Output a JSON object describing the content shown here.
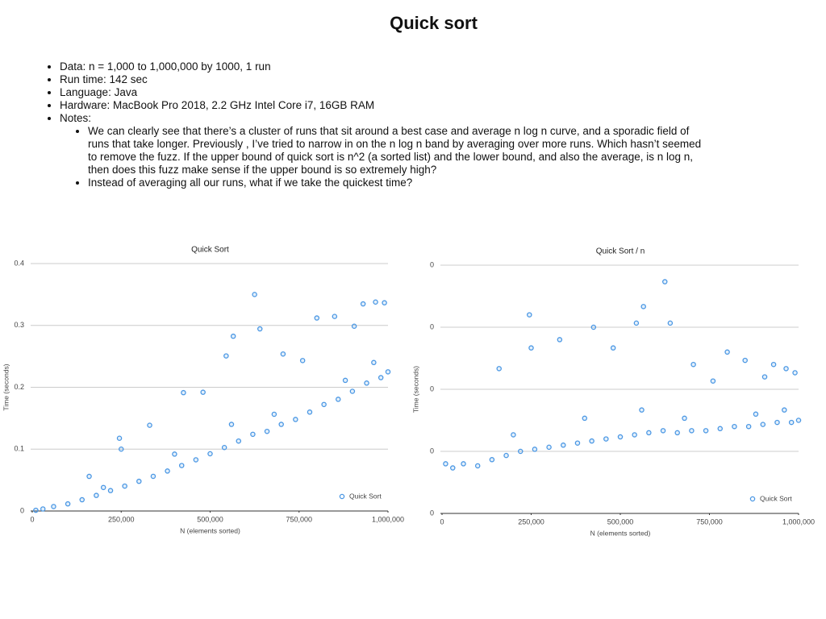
{
  "slide_title": "Quick sort",
  "bullets": [
    "Data: n = 1,000 to 1,000,000 by 1000, 1 run",
    "Run time: 142 sec",
    "Language: Java",
    "Hardware: MacBook Pro 2018, 2.2 GHz Intel Core i7, 16GB RAM",
    "Notes:"
  ],
  "notes": [
    "We can clearly see that there’s a cluster of runs that sit around a best case and average n log n curve, and a sporadic field of runs that take longer. Previously , I’ve tried to narrow in on the n log n band by averaging over more runs. Which hasn’t seemed to remove the fuzz. If the upper bound of quick sort is n^2 (a sorted list) and the lower bound, and also the average, is n log n, then does this fuzz make sense if the upper bound is so extremely high?",
    "Instead of averaging all our runs, what if we take the quickest time?"
  ],
  "chart_data": [
    {
      "type": "scatter",
      "title": "Quick Sort",
      "x_label": "N (elements sorted)",
      "y_label": "Time (seconds)",
      "xlim": [
        0,
        1000000
      ],
      "xticks": [
        0,
        {
          "value": 250000,
          "label": "250,000"
        },
        {
          "value": 500000,
          "label": "500,000"
        },
        {
          "value": 750000,
          "label": "750,000"
        },
        {
          "value": 1000000,
          "label": "1,000,000"
        }
      ],
      "ylim": [
        0,
        0.4
      ],
      "yticks": [
        0,
        0.1,
        0.2,
        0.3,
        0.4
      ],
      "grid": true,
      "legend": "bottom-right",
      "x": [
        10000,
        30000,
        60000,
        100000,
        140000,
        160000,
        180000,
        200000,
        220000,
        245000,
        250000,
        260000,
        300000,
        330000,
        340000,
        380000,
        400000,
        420000,
        425000,
        460000,
        480000,
        500000,
        540000,
        545000,
        560000,
        565000,
        580000,
        620000,
        625000,
        640000,
        660000,
        680000,
        700000,
        705000,
        740000,
        760000,
        780000,
        800000,
        820000,
        850000,
        860000,
        880000,
        900000,
        905000,
        930000,
        940000,
        960000,
        965000,
        980000,
        990000,
        1000000
      ],
      "series": [
        {
          "name": "Quick Sort",
          "color": "#4a97e4",
          "values": [
            0.0012,
            0.0033,
            0.0072,
            0.0115,
            0.0182,
            0.056,
            0.0252,
            0.038,
            0.033,
            0.1176,
            0.1,
            0.0403,
            0.048,
            0.1386,
            0.0561,
            0.0646,
            0.092,
            0.0735,
            0.1913,
            0.0828,
            0.192,
            0.0925,
            0.1026,
            0.2507,
            0.14,
            0.2825,
            0.1131,
            0.124,
            0.35,
            0.2944,
            0.1287,
            0.1564,
            0.14,
            0.2538,
            0.148,
            0.2432,
            0.1599,
            0.312,
            0.1722,
            0.3145,
            0.1806,
            0.2112,
            0.1935,
            0.2987,
            0.3348,
            0.2068,
            0.24,
            0.3378,
            0.2156,
            0.3366,
            0.225
          ]
        }
      ]
    },
    {
      "type": "scatter",
      "title": "Quick Sort / n",
      "x_label": "N (elements sorted)",
      "y_label": "Time (seconds)",
      "xlim": [
        0,
        1000000
      ],
      "xticks": [
        0,
        {
          "value": 250000,
          "label": "250,000"
        },
        {
          "value": 500000,
          "label": "500,000"
        },
        {
          "value": 750000,
          "label": "750,000"
        },
        {
          "value": 1000000,
          "label": "1,000,000"
        }
      ],
      "ylim": [
        0,
        6e-07
      ],
      "yticks": [
        0,
        {
          "value": 1.5e-07,
          "label": "0"
        },
        {
          "value": 3e-07,
          "label": "0"
        },
        {
          "value": 4.5e-07,
          "label": "0"
        },
        {
          "value": 6e-07,
          "label": "0"
        }
      ],
      "grid": true,
      "legend": "bottom-right",
      "x": [
        10000,
        30000,
        60000,
        100000,
        140000,
        160000,
        180000,
        200000,
        220000,
        245000,
        250000,
        260000,
        300000,
        330000,
        340000,
        380000,
        400000,
        420000,
        425000,
        460000,
        480000,
        500000,
        540000,
        545000,
        560000,
        565000,
        580000,
        620000,
        625000,
        640000,
        660000,
        680000,
        700000,
        705000,
        740000,
        760000,
        780000,
        800000,
        820000,
        850000,
        860000,
        880000,
        900000,
        905000,
        930000,
        940000,
        960000,
        965000,
        980000,
        990000,
        1000000
      ],
      "series": [
        {
          "name": "Quick Sort",
          "color": "#4a97e4",
          "values": [
            1.2e-07,
            1.1e-07,
            1.2e-07,
            1.15e-07,
            1.3e-07,
            3.5e-07,
            1.4e-07,
            1.9e-07,
            1.5e-07,
            4.8e-07,
            4e-07,
            1.55e-07,
            1.6e-07,
            4.2e-07,
            1.65e-07,
            1.7e-07,
            2.3e-07,
            1.75e-07,
            4.5e-07,
            1.8e-07,
            4e-07,
            1.85e-07,
            1.9e-07,
            4.6e-07,
            2.5e-07,
            5e-07,
            1.95e-07,
            2e-07,
            5.6e-07,
            4.6e-07,
            1.95e-07,
            2.3e-07,
            2e-07,
            3.6e-07,
            2e-07,
            3.2e-07,
            2.05e-07,
            3.9e-07,
            2.1e-07,
            3.7e-07,
            2.1e-07,
            2.4e-07,
            2.15e-07,
            3.3e-07,
            3.6e-07,
            2.2e-07,
            2.5e-07,
            3.5e-07,
            2.2e-07,
            3.4e-07,
            2.25e-07
          ]
        }
      ]
    }
  ]
}
